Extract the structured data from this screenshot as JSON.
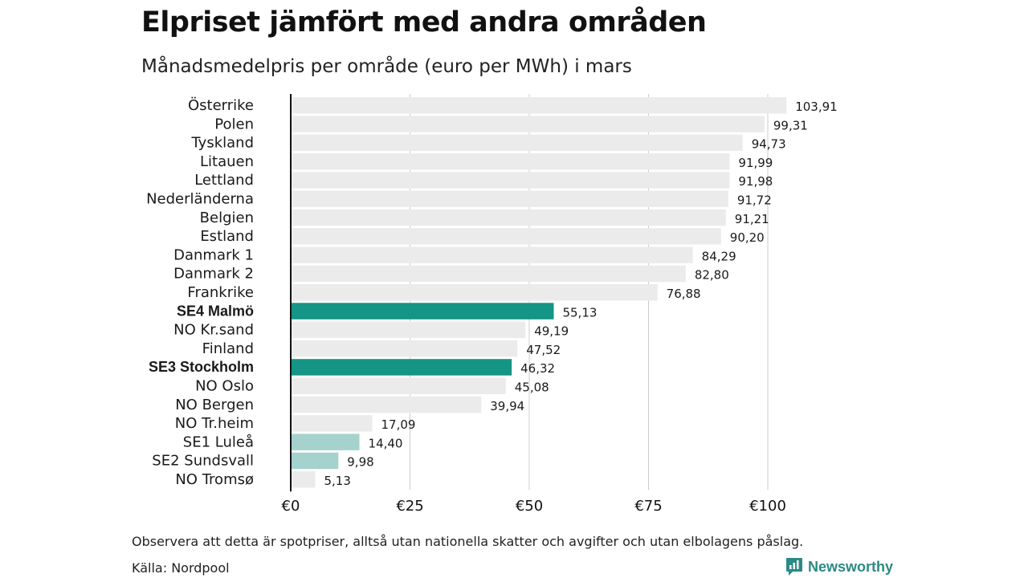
{
  "title": "Elpriset jämfört med andra områden",
  "subtitle": "Månadsmedelpris per område (euro per MWh) i mars",
  "note": "Observera att detta är spotpriser, alltså utan nationella skatter och avgifter och utan elbolagens påslag.",
  "source": "Källa: Nordpool",
  "brand": "Newsworthy",
  "colors": {
    "default_bar": "#ebebeb",
    "highlight_bar": "#149585",
    "light_highlight_bar": "#a5d2cc",
    "grid": "#cccccc",
    "axis": "#111111",
    "brand": "#2b8a84"
  },
  "chart_data": {
    "type": "bar",
    "orientation": "horizontal",
    "categories": [
      "Österrike",
      "Polen",
      "Tyskland",
      "Litauen",
      "Lettland",
      "Nederländerna",
      "Belgien",
      "Estland",
      "Danmark  1",
      "Danmark  2",
      "Frankrike",
      "SE4 Malmö",
      "NO Kr.sand",
      "Finland",
      "SE3 Stockholm",
      "NO Oslo",
      "NO Bergen",
      "NO Tr.heim",
      "SE1  Luleå",
      "SE2  Sundsvall",
      "NO Tromsø"
    ],
    "values": [
      103.91,
      99.31,
      94.73,
      91.99,
      91.98,
      91.72,
      91.21,
      90.2,
      84.29,
      82.8,
      76.88,
      55.13,
      49.19,
      47.52,
      46.32,
      45.08,
      39.94,
      17.09,
      14.4,
      9.98,
      5.13
    ],
    "value_labels": [
      "103,91",
      "99,31",
      "94,73",
      "91,99",
      "91,98",
      "91,72",
      "91,21",
      "90,20",
      "84,29",
      "82,80",
      "76,88",
      "55,13",
      "49,19",
      "47,52",
      "46,32",
      "45,08",
      "39,94",
      "17,09",
      "14,40",
      "9,98",
      "5,13"
    ],
    "bar_style": [
      "default",
      "default",
      "default",
      "default",
      "default",
      "default",
      "default",
      "default",
      "default",
      "default",
      "default",
      "highlight",
      "default",
      "default",
      "highlight",
      "default",
      "default",
      "default",
      "light",
      "light",
      "default"
    ],
    "bold_labels": [
      "SE4 Malmö",
      "SE3 Stockholm"
    ],
    "x_ticks": [
      0,
      25,
      50,
      75,
      100
    ],
    "x_tick_labels": [
      "€0",
      "€25",
      "€50",
      "€75",
      "€100"
    ],
    "xlim": [
      0,
      105
    ],
    "grid": true,
    "legend": "none"
  }
}
